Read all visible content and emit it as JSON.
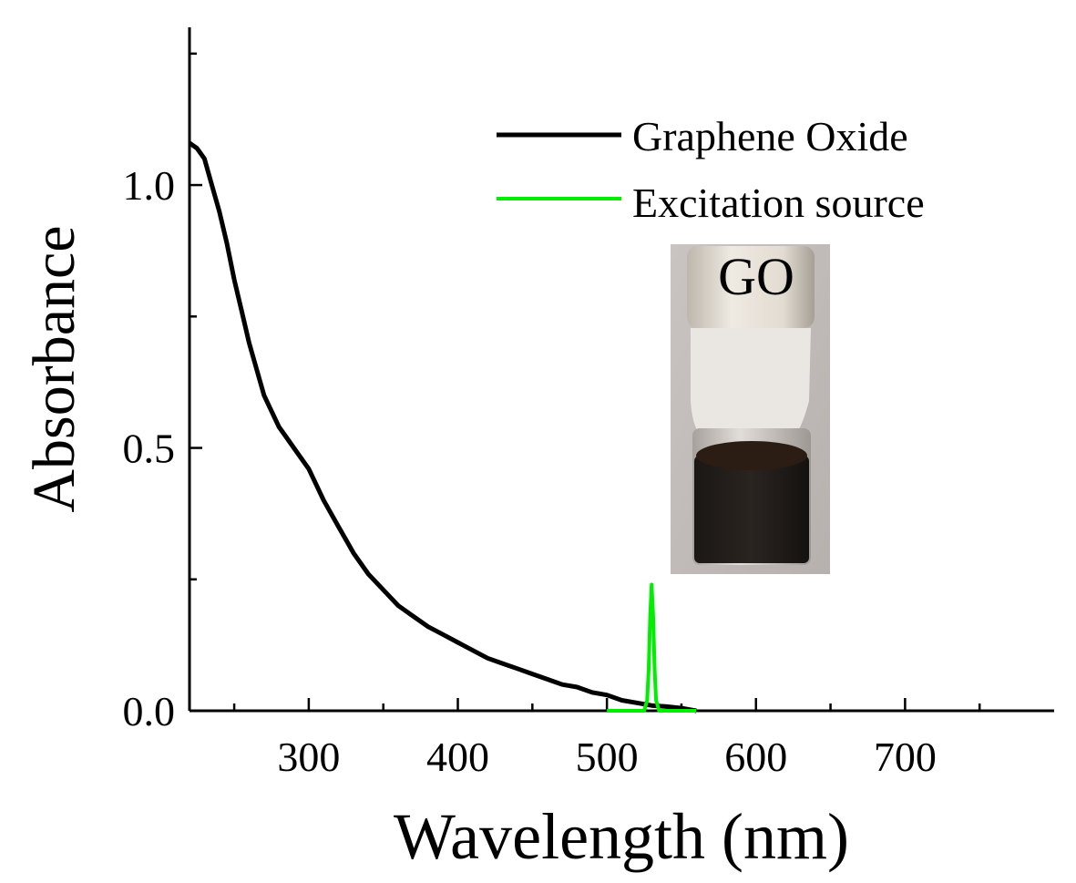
{
  "chart_data": {
    "type": "line",
    "xlabel": "Wavelength (nm)",
    "ylabel": "Absorbance",
    "xlim": [
      220,
      800
    ],
    "ylim": [
      0,
      1.3
    ],
    "x_ticks": [
      300,
      400,
      500,
      600,
      700
    ],
    "y_ticks": [
      0.0,
      0.5,
      1.0
    ],
    "x_tick_labels": [
      "300",
      "400",
      "500",
      "600",
      "700"
    ],
    "y_tick_labels": [
      "0.0",
      "0.5",
      "1.0"
    ],
    "legend_position": "top-right",
    "grid": false,
    "series": [
      {
        "name": "Graphene Oxide",
        "color": "#000000",
        "x": [
          220,
          225,
          230,
          235,
          240,
          245,
          250,
          255,
          260,
          265,
          270,
          275,
          280,
          285,
          290,
          300,
          310,
          320,
          330,
          340,
          350,
          360,
          370,
          380,
          390,
          400,
          410,
          420,
          430,
          440,
          450,
          460,
          470,
          480,
          490,
          500,
          510,
          520,
          530,
          540,
          550,
          560
        ],
        "y": [
          1.08,
          1.07,
          1.05,
          1.0,
          0.95,
          0.89,
          0.82,
          0.76,
          0.7,
          0.65,
          0.6,
          0.57,
          0.54,
          0.52,
          0.5,
          0.46,
          0.4,
          0.35,
          0.3,
          0.26,
          0.23,
          0.2,
          0.18,
          0.16,
          0.145,
          0.13,
          0.115,
          0.1,
          0.09,
          0.08,
          0.07,
          0.06,
          0.05,
          0.045,
          0.035,
          0.03,
          0.02,
          0.015,
          0.01,
          0.008,
          0.005,
          0.0
        ]
      },
      {
        "name": "Excitation source",
        "color": "#00ee00",
        "x": [
          500,
          520,
          525,
          527,
          528,
          529,
          530,
          531,
          532,
          533,
          535,
          540,
          560
        ],
        "y": [
          0.0,
          0.0,
          0.0,
          0.02,
          0.08,
          0.18,
          0.24,
          0.18,
          0.08,
          0.02,
          0.0,
          0.0,
          0.0
        ]
      }
    ],
    "inset": {
      "label": "GO"
    }
  }
}
